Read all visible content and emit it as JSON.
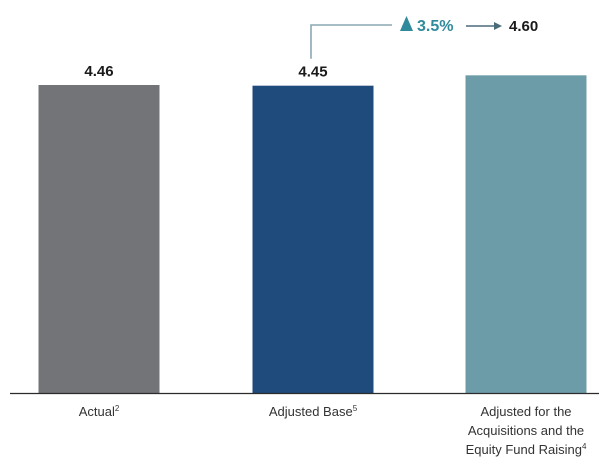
{
  "chart_data": {
    "type": "bar",
    "categories": [
      {
        "label_lines": [
          "Actual"
        ],
        "sup": "2"
      },
      {
        "label_lines": [
          "Adjusted Base"
        ],
        "sup": "5"
      },
      {
        "label_lines": [
          "Adjusted for the",
          "Acquisitions and the",
          "Equity Fund Raising"
        ],
        "sup": "4"
      }
    ],
    "values": [
      4.46,
      4.45,
      4.6
    ],
    "data_labels": [
      "4.46",
      "4.45",
      ""
    ],
    "bar_colors": [
      "#737478",
      "#1f4a7c",
      "#6c9ca8"
    ],
    "annotation": {
      "change_text": "3.5%",
      "target_label": "4.60",
      "from_index": 1,
      "to_index": 2,
      "accent_color": "#2f8a9b",
      "icon": "triangle-up-icon"
    },
    "axis_color": "#2b2b2b",
    "title": "",
    "xlabel": "",
    "ylabel": ""
  }
}
